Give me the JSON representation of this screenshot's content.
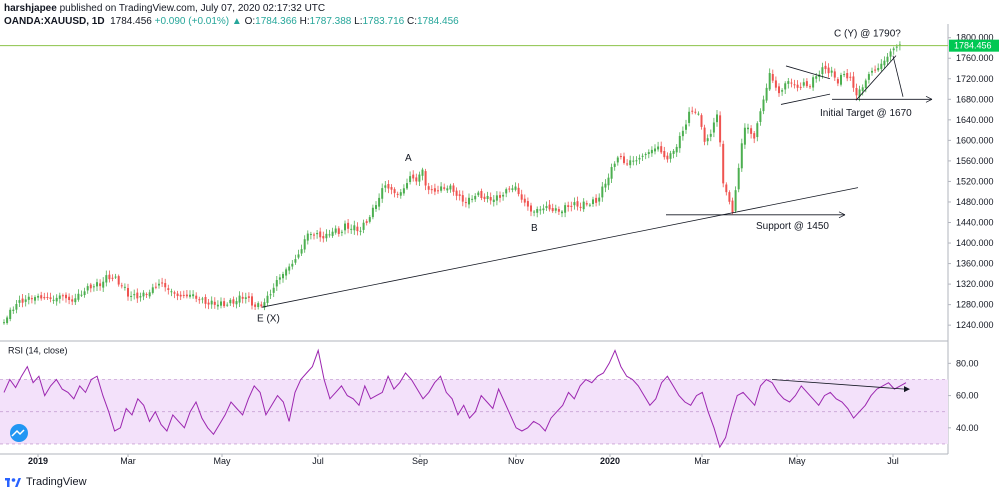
{
  "header": {
    "author": "harshjapee",
    "published_text": "published on TradingView.com, July 07, 2020 02:17:32 UTC",
    "symbol": "OANDA:XAUUSD, 1D",
    "last": "1784.456",
    "change": "+0.090 (+0.01%)",
    "o_label": "O:",
    "o_value": "1784.366",
    "h_label": "H:",
    "h_value": "1787.388",
    "l_label": "L:",
    "l_value": "1783.716",
    "c_label": "C:",
    "c_value": "1784.456"
  },
  "footer": {
    "brand": "TradingView"
  },
  "colors": {
    "up": "#26a69a",
    "candle_up": "#4caf50",
    "candle_down": "#ef5350",
    "rsi_line": "#9c27b0",
    "rsi_band": "#f3e1fa",
    "price_line": "#8bc34a",
    "price_tag": "#00c853"
  },
  "chart_data": [
    {
      "type": "candlestick",
      "title": "OANDA:XAUUSD, 1D",
      "price_tag": "1784.456",
      "y_ticks": [
        1240,
        1280,
        1320,
        1360,
        1400,
        1440,
        1480,
        1520,
        1560,
        1600,
        1640,
        1680,
        1720,
        1760,
        1800
      ],
      "y_tick_labels": [
        "1240.000",
        "1280.000",
        "1320.000",
        "1360.000",
        "1400.000",
        "1440.000",
        "1480.000",
        "1520.000",
        "1560.000",
        "1600.000",
        "1640.000",
        "1680.000",
        "1720.000",
        "1760.000",
        "1800.000"
      ],
      "ylim": [
        1215,
        1815
      ],
      "x_labels": [
        "2019",
        "Mar",
        "May",
        "Jul",
        "Sep",
        "Nov",
        "2020",
        "Mar",
        "May",
        "Jul"
      ],
      "close_path": [
        [
          0,
          1245
        ],
        [
          7,
          1255
        ],
        [
          15,
          1280
        ],
        [
          25,
          1290
        ],
        [
          35,
          1295
        ],
        [
          45,
          1293
        ],
        [
          55,
          1290
        ],
        [
          62,
          1300
        ],
        [
          70,
          1285
        ],
        [
          80,
          1300
        ],
        [
          90,
          1315
        ],
        [
          100,
          1320
        ],
        [
          108,
          1335
        ],
        [
          115,
          1330
        ],
        [
          122,
          1318
        ],
        [
          128,
          1300
        ],
        [
          135,
          1295
        ],
        [
          142,
          1298
        ],
        [
          150,
          1305
        ],
        [
          155,
          1315
        ],
        [
          160,
          1323
        ],
        [
          168,
          1310
        ],
        [
          175,
          1300
        ],
        [
          182,
          1295
        ],
        [
          190,
          1300
        ],
        [
          200,
          1290
        ],
        [
          208,
          1282
        ],
        [
          215,
          1283
        ],
        [
          222,
          1280
        ],
        [
          230,
          1283
        ],
        [
          238,
          1290
        ],
        [
          245,
          1298
        ],
        [
          250,
          1285
        ],
        [
          255,
          1277
        ],
        [
          262,
          1280
        ],
        [
          270,
          1300
        ],
        [
          278,
          1330
        ],
        [
          285,
          1345
        ],
        [
          292,
          1360
        ],
        [
          300,
          1380
        ],
        [
          305,
          1410
        ],
        [
          310,
          1420
        ],
        [
          318,
          1415
        ],
        [
          325,
          1410
        ],
        [
          332,
          1425
        ],
        [
          340,
          1420
        ],
        [
          345,
          1432
        ],
        [
          352,
          1430
        ],
        [
          360,
          1425
        ],
        [
          366,
          1440
        ],
        [
          372,
          1460
        ],
        [
          378,
          1485
        ],
        [
          385,
          1515
        ],
        [
          392,
          1500
        ],
        [
          400,
          1495
        ],
        [
          405,
          1510
        ],
        [
          410,
          1530
        ],
        [
          416,
          1520
        ],
        [
          422,
          1545
        ],
        [
          426,
          1510
        ],
        [
          432,
          1500
        ],
        [
          440,
          1505
        ],
        [
          448,
          1510
        ],
        [
          455,
          1500
        ],
        [
          460,
          1485
        ],
        [
          468,
          1480
        ],
        [
          475,
          1495
        ],
        [
          482,
          1490
        ],
        [
          490,
          1485
        ],
        [
          500,
          1490
        ],
        [
          508,
          1505
        ],
        [
          515,
          1510
        ],
        [
          520,
          1490
        ],
        [
          526,
          1475
        ],
        [
          532,
          1460
        ],
        [
          538,
          1465
        ],
        [
          545,
          1470
        ],
        [
          552,
          1465
        ],
        [
          560,
          1462
        ],
        [
          566,
          1470
        ],
        [
          572,
          1475
        ],
        [
          580,
          1472
        ],
        [
          588,
          1478
        ],
        [
          596,
          1480
        ],
        [
          600,
          1495
        ],
        [
          606,
          1520
        ],
        [
          612,
          1545
        ],
        [
          618,
          1570
        ],
        [
          625,
          1555
        ],
        [
          632,
          1560
        ],
        [
          640,
          1565
        ],
        [
          646,
          1575
        ],
        [
          652,
          1580
        ],
        [
          658,
          1590
        ],
        [
          662,
          1570
        ],
        [
          668,
          1565
        ],
        [
          672,
          1575
        ],
        [
          678,
          1595
        ],
        [
          684,
          1625
        ],
        [
          690,
          1655
        ],
        [
          695,
          1660
        ],
        [
          700,
          1640
        ],
        [
          706,
          1590
        ],
        [
          712,
          1620
        ],
        [
          716,
          1660
        ],
        [
          720,
          1600
        ],
        [
          724,
          1500
        ],
        [
          728,
          1490
        ],
        [
          733,
          1460
        ],
        [
          737,
          1520
        ],
        [
          742,
          1600
        ],
        [
          746,
          1630
        ],
        [
          750,
          1620
        ],
        [
          754,
          1600
        ],
        [
          758,
          1640
        ],
        [
          762,
          1670
        ],
        [
          766,
          1695
        ],
        [
          770,
          1735
        ],
        [
          774,
          1710
        ],
        [
          778,
          1690
        ],
        [
          784,
          1705
        ],
        [
          790,
          1720
        ],
        [
          796,
          1700
        ],
        [
          802,
          1710
        ],
        [
          808,
          1705
        ],
        [
          814,
          1720
        ],
        [
          820,
          1735
        ],
        [
          826,
          1740
        ],
        [
          832,
          1730
        ],
        [
          838,
          1715
        ],
        [
          844,
          1730
        ],
        [
          850,
          1720
        ],
        [
          856,
          1690
        ],
        [
          862,
          1700
        ],
        [
          866,
          1720
        ],
        [
          872,
          1735
        ],
        [
          878,
          1740
        ],
        [
          884,
          1755
        ],
        [
          890,
          1770
        ],
        [
          896,
          1785
        ],
        [
          900,
          1784
        ]
      ],
      "annotations": [
        {
          "text": "A",
          "price": 1560
        },
        {
          "text": "B",
          "price": 1423
        },
        {
          "text": "E (X)",
          "price": 1247
        },
        {
          "text": "C (Y) @ 1790?",
          "price": 1802
        },
        {
          "text": "Initial Target @ 1670",
          "price": 1647
        },
        {
          "text": "Support @ 1450",
          "price": 1427
        }
      ]
    },
    {
      "type": "line",
      "title": "RSI (14, close)",
      "ylim": [
        25,
        92
      ],
      "y_ticks": [
        40,
        60,
        80
      ],
      "y_tick_labels": [
        "40.00",
        "60.00",
        "80.00"
      ],
      "band": [
        30,
        70
      ],
      "series": [
        {
          "values": [
            62,
            70,
            65,
            72,
            78,
            68,
            72,
            60,
            66,
            70,
            64,
            62,
            58,
            66,
            62,
            70,
            72,
            60,
            50,
            38,
            40,
            52,
            48,
            58,
            54,
            44,
            50,
            42,
            38,
            48,
            44,
            40,
            50,
            56,
            46,
            40,
            36,
            42,
            48,
            56,
            52,
            48,
            58,
            66,
            62,
            48,
            54,
            60,
            56,
            44,
            62,
            70,
            74,
            78,
            88,
            70,
            58,
            62,
            66,
            60,
            58,
            54,
            66,
            58,
            60,
            62,
            72,
            64,
            68,
            74,
            70,
            64,
            58,
            62,
            68,
            72,
            62,
            58,
            48,
            54,
            46,
            50,
            60,
            56,
            52,
            64,
            56,
            48,
            40,
            38,
            40,
            44,
            42,
            38,
            46,
            50,
            54,
            62,
            58,
            66,
            70,
            68,
            72,
            74,
            80,
            88,
            78,
            72,
            70,
            66,
            60,
            54,
            58,
            68,
            72,
            66,
            60,
            56,
            54,
            60,
            62,
            50,
            40,
            28,
            34,
            48,
            60,
            62,
            58,
            54,
            66,
            70,
            68,
            62,
            58,
            56,
            60,
            66,
            62,
            58,
            54,
            60,
            62,
            58,
            56,
            52,
            46,
            50,
            54,
            60,
            64,
            66,
            68,
            64,
            66,
            68
          ]
        }
      ]
    }
  ]
}
